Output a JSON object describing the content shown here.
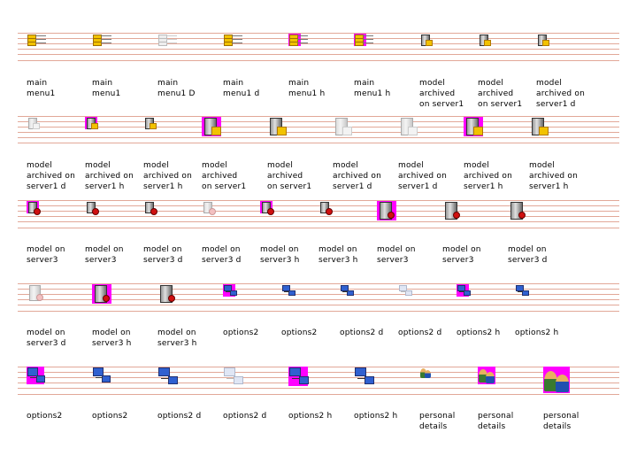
{
  "rows": [
    {
      "lines": [
        37,
        43,
        49,
        55,
        61,
        68
      ],
      "items": [
        {
          "label": "main\nmenu1",
          "icon": "menu-icon",
          "variant": "normal"
        },
        {
          "label": "main\nmenu1",
          "icon": "menu-icon",
          "variant": "normal"
        },
        {
          "label": "main\nmenu1 D",
          "icon": "menu-icon",
          "variant": "disabled"
        },
        {
          "label": "main\nmenu1 d",
          "icon": "menu-icon",
          "variant": "down"
        },
        {
          "label": "main\nmenu1 h",
          "icon": "menu-icon",
          "variant": "hover"
        },
        {
          "label": "main\nmenu1 h",
          "icon": "menu-icon",
          "variant": "hover"
        },
        {
          "label": "model\narchived\non server1",
          "icon": "archived-server-icon",
          "variant": "normal"
        },
        {
          "label": "model\narchived\non server1",
          "icon": "archived-server-icon",
          "variant": "normal"
        },
        {
          "label": "model\narchived on\nserver1 d",
          "icon": "archived-server-icon",
          "variant": "down"
        }
      ]
    },
    {
      "lines": [
        131,
        137,
        143,
        149,
        155,
        161
      ],
      "items": [
        {
          "label": "model\narchived on\nserver1 d",
          "icon": "archived-server-icon",
          "variant": "disabled"
        },
        {
          "label": "model\narchived on\nserver1 h",
          "icon": "archived-server-icon",
          "variant": "hover"
        },
        {
          "label": "model\narchived on\nserver1 h",
          "icon": "archived-server-icon",
          "variant": "normal"
        },
        {
          "label": "model\narchived\non server1",
          "icon": "archived-server-icon",
          "variant": "hover"
        },
        {
          "label": "model\narchived\non server1",
          "icon": "archived-server-icon",
          "variant": "normal"
        },
        {
          "label": "model\narchived on\nserver1 d",
          "icon": "archived-server-icon",
          "variant": "disabled"
        },
        {
          "label": "model\narchived on\nserver1 d",
          "icon": "archived-server-icon",
          "variant": "disabled"
        },
        {
          "label": "model\narchived on\nserver1 h",
          "icon": "archived-server-icon",
          "variant": "hover"
        },
        {
          "label": "model\narchived on\nserver1 h",
          "icon": "archived-server-icon",
          "variant": "normal"
        }
      ]
    },
    {
      "lines": [
        226,
        232,
        238,
        244,
        250,
        257
      ],
      "items": [
        {
          "label": "model on\nserver3",
          "icon": "server-no-entry-icon",
          "variant": "hover"
        },
        {
          "label": "model on\nserver3",
          "icon": "server-no-entry-icon",
          "variant": "normal"
        },
        {
          "label": "model on\nserver3 d",
          "icon": "server-no-entry-icon",
          "variant": "down"
        },
        {
          "label": "model on\nserver3 d",
          "icon": "server-no-entry-icon",
          "variant": "disabled"
        },
        {
          "label": "model on\nserver3 h",
          "icon": "server-no-entry-icon",
          "variant": "hover"
        },
        {
          "label": "model on\nserver3 h",
          "icon": "server-no-entry-icon",
          "variant": "normal"
        },
        {
          "label": "model on\nserver3",
          "icon": "server-no-entry-icon",
          "variant": "hover"
        },
        {
          "label": "model on\nserver3",
          "icon": "server-no-entry-icon",
          "variant": "normal"
        },
        {
          "label": "model on\nserver3 d",
          "icon": "server-no-entry-icon",
          "variant": "down"
        }
      ]
    },
    {
      "lines": [
        320,
        326,
        332,
        338,
        344,
        351
      ],
      "items": [
        {
          "label": "model on\nserver3 d",
          "icon": "server-no-entry-icon",
          "variant": "disabled"
        },
        {
          "label": "model on\nserver3 h",
          "icon": "server-no-entry-icon",
          "variant": "hover"
        },
        {
          "label": "model on\nserver3 h",
          "icon": "server-no-entry-icon",
          "variant": "normal"
        },
        {
          "label": "options2",
          "icon": "network-options-icon",
          "variant": "hover"
        },
        {
          "label": "options2",
          "icon": "network-options-icon",
          "variant": "normal"
        },
        {
          "label": "options2 d",
          "icon": "network-options-icon",
          "variant": "down"
        },
        {
          "label": "options2 d",
          "icon": "network-options-icon",
          "variant": "disabled"
        },
        {
          "label": "options2 h",
          "icon": "network-options-icon",
          "variant": "hover"
        },
        {
          "label": "options2 h",
          "icon": "network-options-icon",
          "variant": "normal"
        }
      ]
    },
    {
      "lines": [
        414,
        420,
        426,
        432,
        438,
        445
      ],
      "items": [
        {
          "label": "options2",
          "icon": "network-options-icon",
          "variant": "hover"
        },
        {
          "label": "options2",
          "icon": "network-options-icon",
          "variant": "normal"
        },
        {
          "label": "options2 d",
          "icon": "network-options-icon",
          "variant": "down"
        },
        {
          "label": "options2 d",
          "icon": "network-options-icon",
          "variant": "disabled"
        },
        {
          "label": "options2 h",
          "icon": "network-options-icon",
          "variant": "hover"
        },
        {
          "label": "options2 h",
          "icon": "network-options-icon",
          "variant": "normal"
        },
        {
          "label": "personal\ndetails",
          "icon": "personal-details-icon",
          "variant": "normal"
        },
        {
          "label": "personal\ndetails",
          "icon": "personal-details-icon",
          "variant": "hover"
        },
        {
          "label": "personal\ndetails",
          "icon": "personal-details-icon",
          "variant": "hover"
        }
      ]
    }
  ],
  "colors": {
    "hover_bg": "#ff00ff",
    "guide_line": "#e2a898"
  }
}
